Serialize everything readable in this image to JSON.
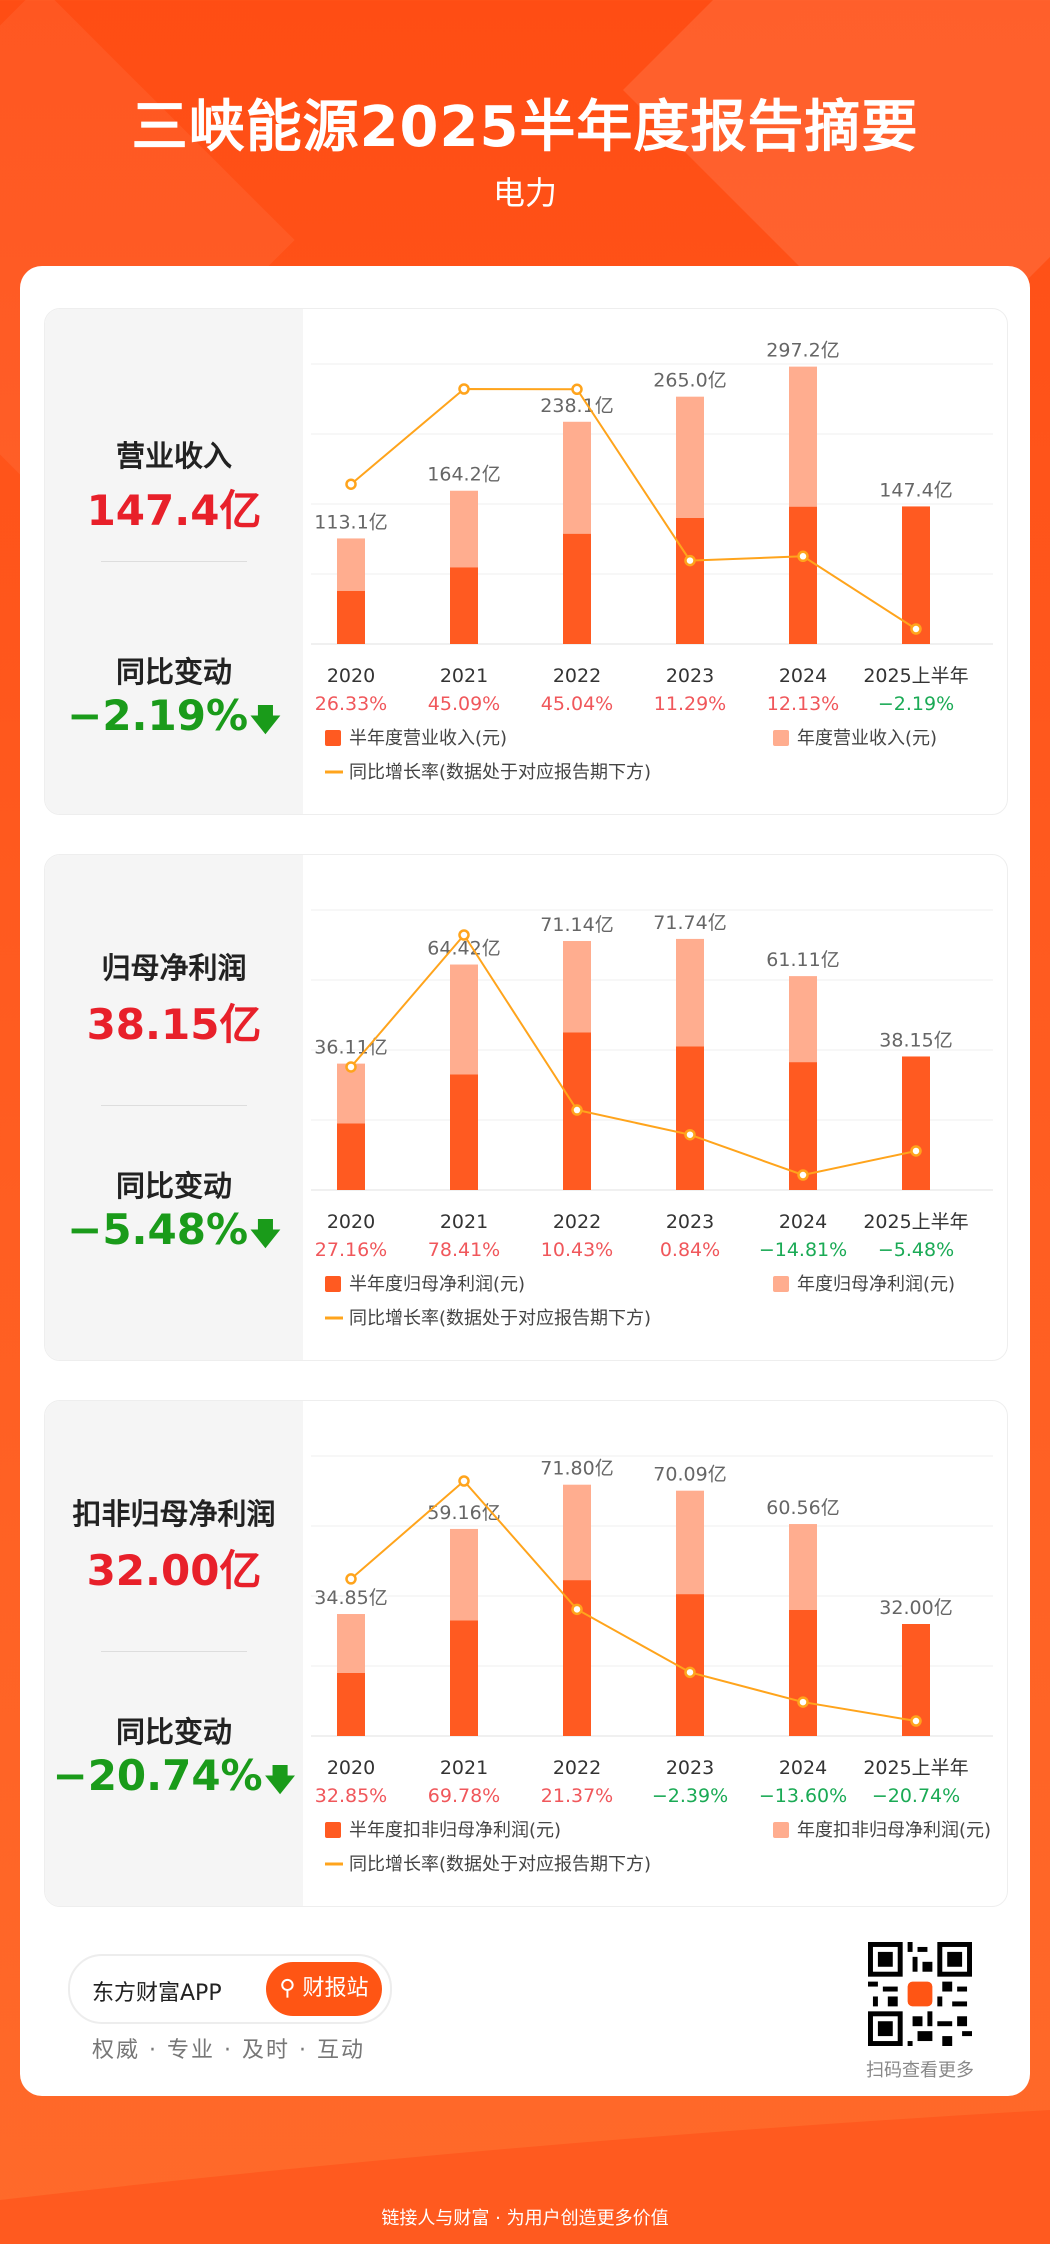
{
  "header": {
    "title": "三峡能源2025半年度报告摘要",
    "industry": "电力"
  },
  "colors": {
    "bar_half": "#ff5a21",
    "bar_full": "#ffad8f",
    "line": "#ffa41c",
    "up": "#e8202a",
    "down": "#1a9b1a",
    "pct_pos": "#f0575b",
    "pct_neg": "#1aaa55"
  },
  "panels": [
    {
      "label": "营业收入",
      "value": "147.4亿",
      "change_label": "同比变动",
      "change_value": "−2.19%",
      "change_icon": "arrow-down-icon",
      "chart_data": {
        "type": "bar",
        "categories": [
          "2020",
          "2021",
          "2022",
          "2023",
          "2024",
          "2025上半年"
        ],
        "series": [
          {
            "name": "半年度营业收入(元)",
            "values": [
              56.8,
              82.0,
              118.0,
              135.0,
              147.0,
              147.4
            ]
          },
          {
            "name": "年度营业收入(元)",
            "values": [
              113.1,
              164.2,
              238.1,
              265.0,
              297.2,
              null
            ]
          }
        ],
        "bar_labels": [
          "113.1亿",
          "164.2亿",
          "238.1亿",
          "265.0亿",
          "297.2亿",
          "147.4亿"
        ],
        "growth": [
          26.33,
          45.09,
          45.04,
          11.29,
          12.13,
          -2.19
        ],
        "growth_labels": [
          "26.33%",
          "45.09%",
          "45.04%",
          "11.29%",
          "12.13%",
          "−2.19%"
        ],
        "ylim": [
          0,
          300
        ],
        "legend_half": "半年度营业收入(元)",
        "legend_full": "年度营业收入(元)",
        "legend_line": "同比增长率(数据处于对应报告期下方)"
      }
    },
    {
      "label": "归母净利润",
      "value": "38.15亿",
      "change_label": "同比变动",
      "change_value": "−5.48%",
      "change_icon": "arrow-down-icon",
      "chart_data": {
        "type": "bar",
        "categories": [
          "2020",
          "2021",
          "2022",
          "2023",
          "2024",
          "2025上半年"
        ],
        "series": [
          {
            "name": "半年度归母净利润(元)",
            "values": [
              19.0,
              33.0,
              45.0,
              41.0,
              36.5,
              38.15
            ]
          },
          {
            "name": "年度归母净利润(元)",
            "values": [
              36.11,
              64.42,
              71.14,
              71.74,
              61.11,
              null
            ]
          }
        ],
        "bar_labels": [
          "36.11亿",
          "64.42亿",
          "71.14亿",
          "71.74亿",
          "61.11亿",
          "38.15亿"
        ],
        "growth": [
          27.16,
          78.41,
          10.43,
          0.84,
          -14.81,
          -5.48
        ],
        "growth_labels": [
          "27.16%",
          "78.41%",
          "10.43%",
          "0.84%",
          "−14.81%",
          "−5.48%"
        ],
        "ylim": [
          0,
          80
        ],
        "legend_half": "半年度归母净利润(元)",
        "legend_full": "年度归母净利润(元)",
        "legend_line": "同比增长率(数据处于对应报告期下方)"
      }
    },
    {
      "label": "扣非归母净利润",
      "value": "32.00亿",
      "change_label": "同比变动",
      "change_value": "−20.74%",
      "change_icon": "arrow-down-icon",
      "chart_data": {
        "type": "bar",
        "categories": [
          "2020",
          "2021",
          "2022",
          "2023",
          "2024",
          "2025上半年"
        ],
        "series": [
          {
            "name": "半年度扣非归母净利润(元)",
            "values": [
              18.0,
              33.0,
              44.5,
              40.5,
              36.0,
              32.0
            ]
          },
          {
            "name": "年度扣非归母净利润(元)",
            "values": [
              34.85,
              59.16,
              71.8,
              70.09,
              60.56,
              null
            ]
          }
        ],
        "bar_labels": [
          "34.85亿",
          "59.16亿",
          "71.80亿",
          "70.09亿",
          "60.56亿",
          "32.00亿"
        ],
        "growth": [
          32.85,
          69.78,
          21.37,
          -2.39,
          -13.6,
          -20.74
        ],
        "growth_labels": [
          "32.85%",
          "69.78%",
          "21.37%",
          "−2.39%",
          "−13.60%",
          "−20.74%"
        ],
        "ylim": [
          0,
          80
        ],
        "legend_half": "半年度扣非归母净利润(元)",
        "legend_full": "年度扣非归母净利润(元)",
        "legend_line": "同比增长率(数据处于对应报告期下方)"
      }
    }
  ],
  "footer": {
    "app_name": "东方财富APP",
    "button_label": "财报站",
    "tagline": "权威 · 专业 · 及时 · 互动",
    "qr_caption": "扫码查看更多",
    "slogan": "链接人与财富 · 为用户创造更多价值"
  }
}
